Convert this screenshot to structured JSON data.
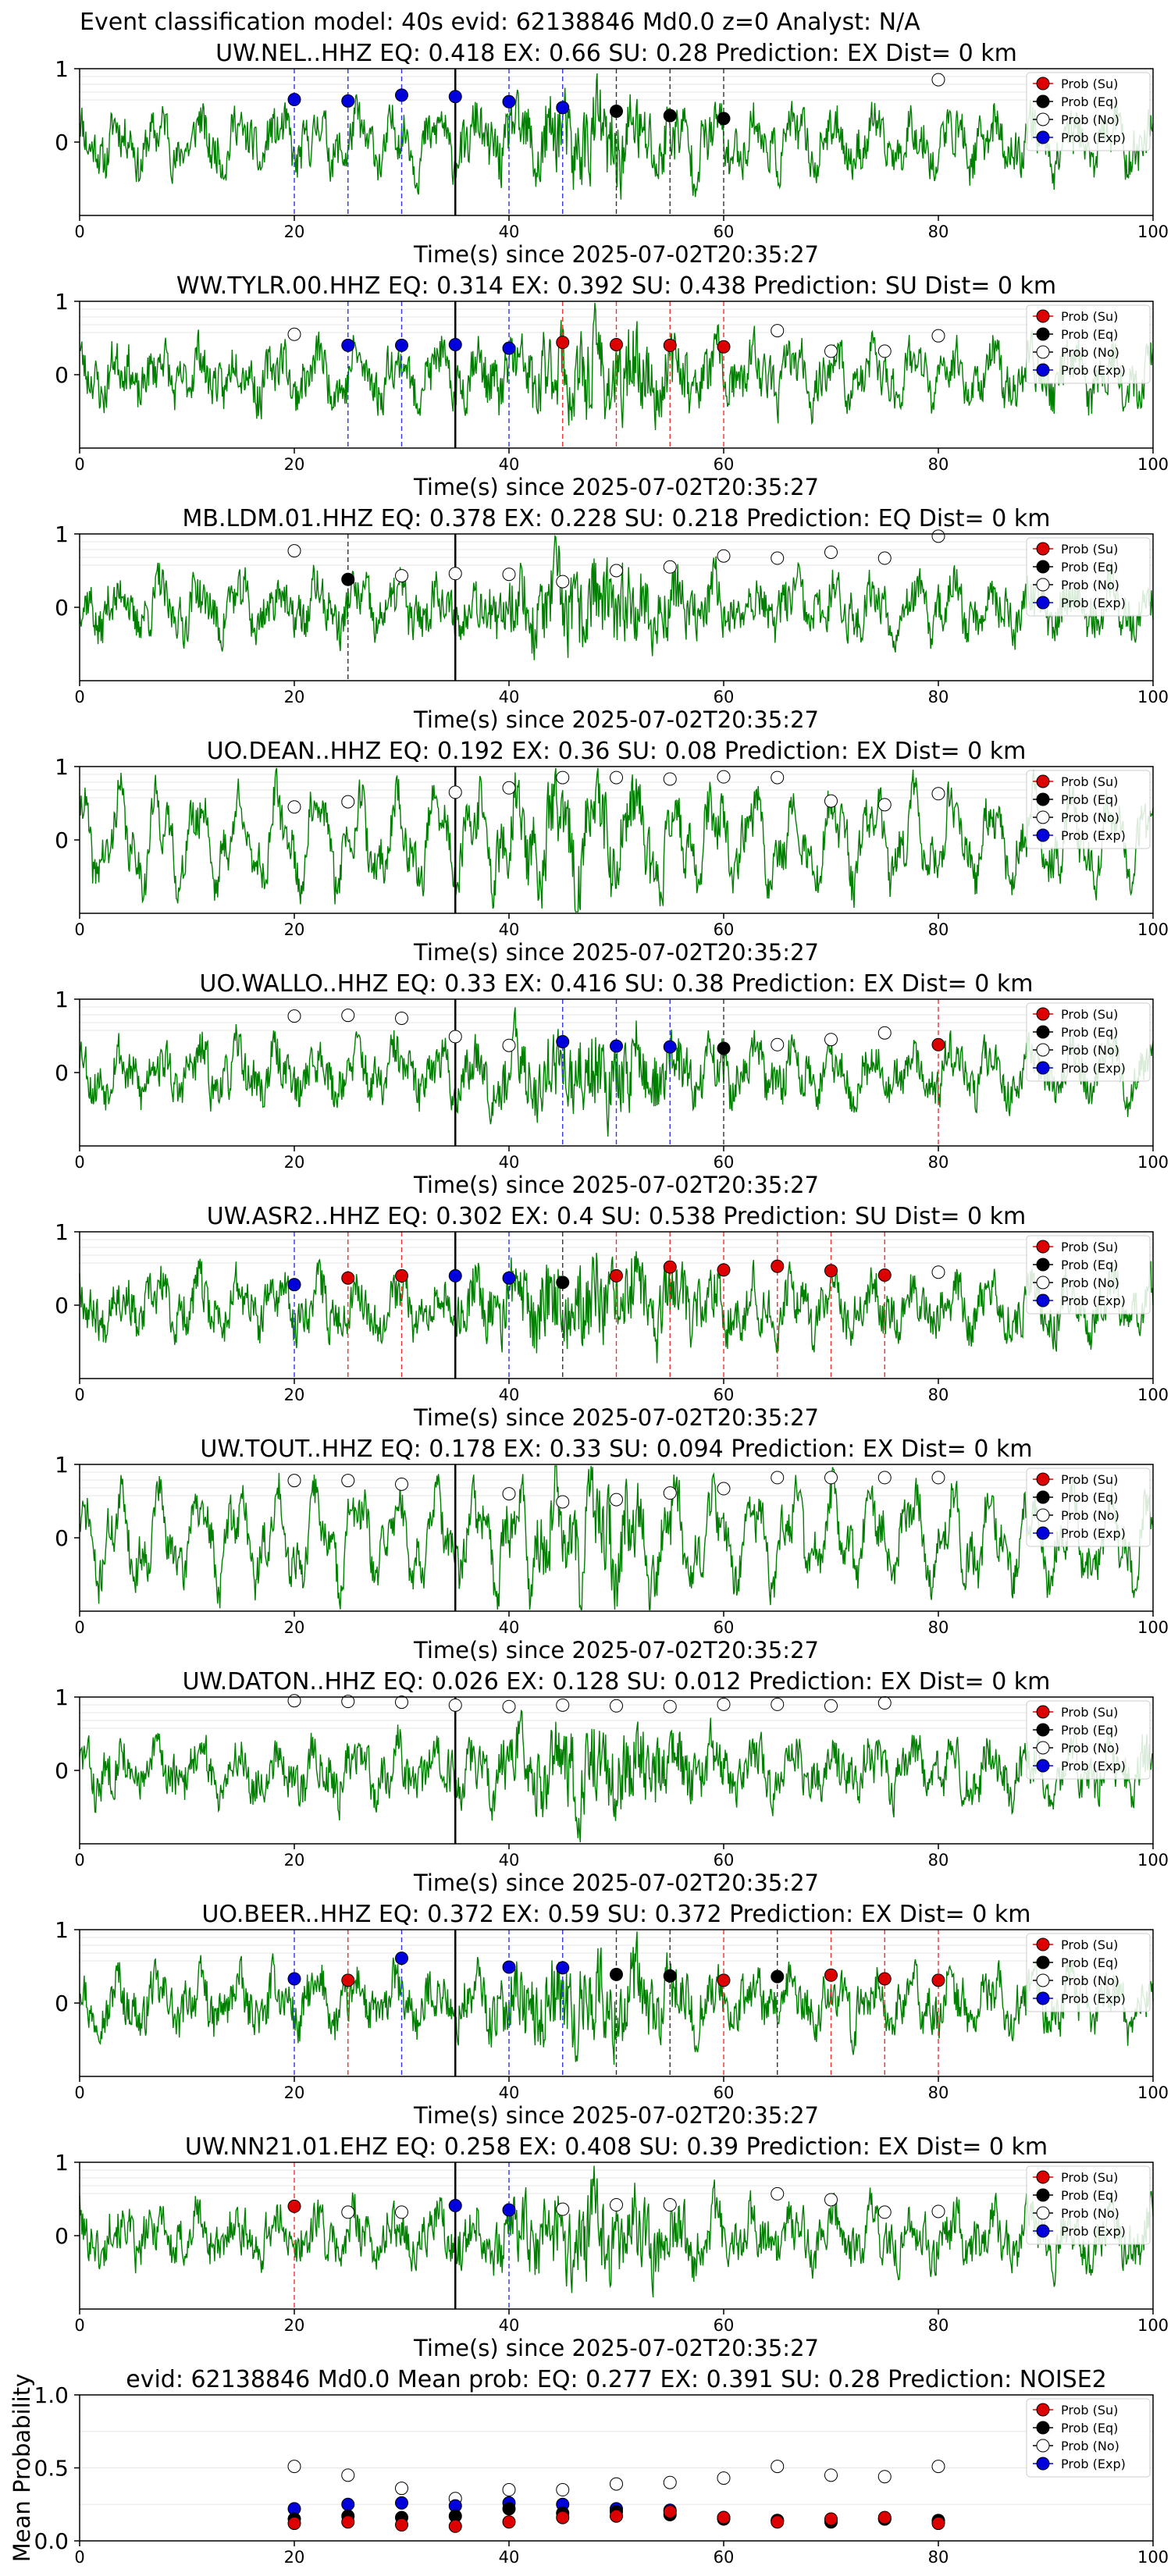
{
  "figure": {
    "suptitle": "Event classification model: 40s evid: 62138846 Md0.0 z=0 Analyst: N/A",
    "xlabel": "Time(s) since 2025-07-02T20:35:27",
    "mean_ylabel": "Mean Probability",
    "legend": [
      "Prob (Su)",
      "Prob (Eq)",
      "Prob (No)",
      "Prob (Exp)"
    ],
    "colors": {
      "su": "#dd0000",
      "eq": "#000000",
      "no": "#ffffff",
      "exp": "#0000dd",
      "waveform": "#008000"
    }
  },
  "chart_data": [
    {
      "type": "line",
      "station": "UW.NEL..HHZ",
      "title": "UW.NEL..HHZ   EQ: 0.418   EX: 0.66   SU: 0.28   Prediction: EX    Dist= 0 km",
      "xlim": [
        0,
        100
      ],
      "ylim": [
        -1,
        1
      ],
      "xticks": [
        0,
        20,
        40,
        60,
        80,
        100
      ],
      "yticks": [
        0,
        1
      ],
      "origin_line": 35,
      "seed": 11,
      "legend_position": "top-right",
      "picks": [
        {
          "t": 20,
          "cls": "exp",
          "p": 0.58
        },
        {
          "t": 25,
          "cls": "exp",
          "p": 0.56
        },
        {
          "t": 30,
          "cls": "exp",
          "p": 0.64
        },
        {
          "t": 35,
          "cls": "exp",
          "p": 0.62
        },
        {
          "t": 40,
          "cls": "exp",
          "p": 0.55
        },
        {
          "t": 45,
          "cls": "exp",
          "p": 0.47
        },
        {
          "t": 50,
          "cls": "eq",
          "p": 0.42
        },
        {
          "t": 55,
          "cls": "eq",
          "p": 0.36
        },
        {
          "t": 60,
          "cls": "eq",
          "p": 0.32
        },
        {
          "t": 80,
          "cls": "no",
          "p": 0.85
        }
      ]
    },
    {
      "type": "line",
      "station": "WW.TYLR.00.HHZ",
      "title": "WW.TYLR.00.HHZ   EQ: 0.314   EX: 0.392   SU: 0.438   Prediction: SU    Dist= 0 km",
      "xlim": [
        0,
        100
      ],
      "ylim": [
        -1,
        1
      ],
      "xticks": [
        0,
        20,
        40,
        60,
        80,
        100
      ],
      "yticks": [
        0,
        1
      ],
      "origin_line": 35,
      "seed": 23,
      "legend_position": "top-right",
      "picks": [
        {
          "t": 20,
          "cls": "no",
          "p": 0.55
        },
        {
          "t": 25,
          "cls": "exp",
          "p": 0.4
        },
        {
          "t": 30,
          "cls": "exp",
          "p": 0.4
        },
        {
          "t": 35,
          "cls": "exp",
          "p": 0.41
        },
        {
          "t": 40,
          "cls": "exp",
          "p": 0.36
        },
        {
          "t": 45,
          "cls": "su",
          "p": 0.44
        },
        {
          "t": 50,
          "cls": "su",
          "p": 0.41
        },
        {
          "t": 55,
          "cls": "su",
          "p": 0.4
        },
        {
          "t": 60,
          "cls": "su",
          "p": 0.38
        },
        {
          "t": 65,
          "cls": "no",
          "p": 0.6
        },
        {
          "t": 70,
          "cls": "no",
          "p": 0.32
        },
        {
          "t": 75,
          "cls": "no",
          "p": 0.32
        },
        {
          "t": 80,
          "cls": "no",
          "p": 0.53
        }
      ]
    },
    {
      "type": "line",
      "station": "MB.LDM.01.HHZ",
      "title": "MB.LDM.01.HHZ   EQ: 0.378   EX: 0.228   SU: 0.218   Prediction: EQ    Dist= 0 km",
      "xlim": [
        0,
        100
      ],
      "ylim": [
        -1,
        1
      ],
      "xticks": [
        0,
        20,
        40,
        60,
        80,
        100
      ],
      "yticks": [
        0,
        1
      ],
      "origin_line": 35,
      "seed": 37,
      "legend_position": "top-right",
      "picks": [
        {
          "t": 20,
          "cls": "no",
          "p": 0.77
        },
        {
          "t": 25,
          "cls": "eq",
          "p": 0.38
        },
        {
          "t": 30,
          "cls": "no",
          "p": 0.43
        },
        {
          "t": 35,
          "cls": "no",
          "p": 0.46
        },
        {
          "t": 40,
          "cls": "no",
          "p": 0.45
        },
        {
          "t": 45,
          "cls": "no",
          "p": 0.35
        },
        {
          "t": 50,
          "cls": "no",
          "p": 0.5
        },
        {
          "t": 55,
          "cls": "no",
          "p": 0.55
        },
        {
          "t": 60,
          "cls": "no",
          "p": 0.7
        },
        {
          "t": 65,
          "cls": "no",
          "p": 0.67
        },
        {
          "t": 70,
          "cls": "no",
          "p": 0.75
        },
        {
          "t": 75,
          "cls": "no",
          "p": 0.67
        },
        {
          "t": 80,
          "cls": "no",
          "p": 0.97
        }
      ]
    },
    {
      "type": "line",
      "station": "UO.DEAN..HHZ",
      "title": "UO.DEAN..HHZ   EQ: 0.192   EX: 0.36   SU: 0.08   Prediction: EX    Dist= 0 km",
      "xlim": [
        0,
        100
      ],
      "ylim": [
        -1,
        1
      ],
      "xticks": [
        0,
        20,
        40,
        60,
        80,
        100
      ],
      "yticks": [
        0,
        1
      ],
      "origin_line": 35,
      "seed": 41,
      "legend_position": "top-right",
      "picks": [
        {
          "t": 20,
          "cls": "no",
          "p": 0.45
        },
        {
          "t": 25,
          "cls": "no",
          "p": 0.52
        },
        {
          "t": 35,
          "cls": "no",
          "p": 0.65
        },
        {
          "t": 40,
          "cls": "no",
          "p": 0.71
        },
        {
          "t": 45,
          "cls": "no",
          "p": 0.85
        },
        {
          "t": 50,
          "cls": "no",
          "p": 0.85
        },
        {
          "t": 55,
          "cls": "no",
          "p": 0.83
        },
        {
          "t": 60,
          "cls": "no",
          "p": 0.86
        },
        {
          "t": 65,
          "cls": "no",
          "p": 0.85
        },
        {
          "t": 70,
          "cls": "no",
          "p": 0.53
        },
        {
          "t": 75,
          "cls": "no",
          "p": 0.48
        },
        {
          "t": 80,
          "cls": "no",
          "p": 0.63
        }
      ]
    },
    {
      "type": "line",
      "station": "UO.WALLO..HHZ",
      "title": "UO.WALLO..HHZ   EQ: 0.33   EX: 0.416   SU: 0.38   Prediction: EX    Dist= 0 km",
      "xlim": [
        0,
        100
      ],
      "ylim": [
        -1,
        1
      ],
      "xticks": [
        0,
        20,
        40,
        60,
        80,
        100
      ],
      "yticks": [
        0,
        1
      ],
      "origin_line": 35,
      "seed": 53,
      "legend_position": "top-right",
      "picks": [
        {
          "t": 20,
          "cls": "no",
          "p": 0.77
        },
        {
          "t": 25,
          "cls": "no",
          "p": 0.78
        },
        {
          "t": 30,
          "cls": "no",
          "p": 0.74
        },
        {
          "t": 35,
          "cls": "no",
          "p": 0.49
        },
        {
          "t": 40,
          "cls": "no",
          "p": 0.37
        },
        {
          "t": 45,
          "cls": "exp",
          "p": 0.42
        },
        {
          "t": 50,
          "cls": "exp",
          "p": 0.36
        },
        {
          "t": 55,
          "cls": "exp",
          "p": 0.35
        },
        {
          "t": 60,
          "cls": "eq",
          "p": 0.33
        },
        {
          "t": 65,
          "cls": "no",
          "p": 0.38
        },
        {
          "t": 70,
          "cls": "no",
          "p": 0.45
        },
        {
          "t": 75,
          "cls": "no",
          "p": 0.54
        },
        {
          "t": 80,
          "cls": "su",
          "p": 0.38
        }
      ]
    },
    {
      "type": "line",
      "station": "UW.ASR2..HHZ",
      "title": "UW.ASR2..HHZ   EQ: 0.302   EX: 0.4   SU: 0.538   Prediction: SU    Dist= 0 km",
      "xlim": [
        0,
        100
      ],
      "ylim": [
        -1,
        1
      ],
      "xticks": [
        0,
        20,
        40,
        60,
        80,
        100
      ],
      "yticks": [
        0,
        1
      ],
      "origin_line": 35,
      "seed": 67,
      "legend_position": "top-right",
      "picks": [
        {
          "t": 20,
          "cls": "exp",
          "p": 0.28
        },
        {
          "t": 25,
          "cls": "su",
          "p": 0.37
        },
        {
          "t": 30,
          "cls": "su",
          "p": 0.4
        },
        {
          "t": 35,
          "cls": "exp",
          "p": 0.4
        },
        {
          "t": 40,
          "cls": "exp",
          "p": 0.37
        },
        {
          "t": 45,
          "cls": "eq",
          "p": 0.31
        },
        {
          "t": 50,
          "cls": "su",
          "p": 0.4
        },
        {
          "t": 55,
          "cls": "su",
          "p": 0.52
        },
        {
          "t": 60,
          "cls": "su",
          "p": 0.48
        },
        {
          "t": 65,
          "cls": "su",
          "p": 0.53
        },
        {
          "t": 70,
          "cls": "su",
          "p": 0.47
        },
        {
          "t": 75,
          "cls": "su",
          "p": 0.41
        },
        {
          "t": 80,
          "cls": "no",
          "p": 0.45
        }
      ]
    },
    {
      "type": "line",
      "station": "UW.TOUT..HHZ",
      "title": "UW.TOUT..HHZ   EQ: 0.178   EX: 0.33   SU: 0.094   Prediction: EX    Dist= 0 km",
      "xlim": [
        0,
        100
      ],
      "ylim": [
        -1,
        1
      ],
      "xticks": [
        0,
        20,
        40,
        60,
        80,
        100
      ],
      "yticks": [
        0,
        1
      ],
      "origin_line": 35,
      "seed": 71,
      "legend_position": "top-right",
      "picks": [
        {
          "t": 20,
          "cls": "no",
          "p": 0.78
        },
        {
          "t": 25,
          "cls": "no",
          "p": 0.78
        },
        {
          "t": 30,
          "cls": "no",
          "p": 0.73
        },
        {
          "t": 40,
          "cls": "no",
          "p": 0.6
        },
        {
          "t": 45,
          "cls": "no",
          "p": 0.49
        },
        {
          "t": 50,
          "cls": "no",
          "p": 0.52
        },
        {
          "t": 55,
          "cls": "no",
          "p": 0.61
        },
        {
          "t": 60,
          "cls": "no",
          "p": 0.67
        },
        {
          "t": 65,
          "cls": "no",
          "p": 0.82
        },
        {
          "t": 70,
          "cls": "no",
          "p": 0.82
        },
        {
          "t": 75,
          "cls": "no",
          "p": 0.82
        },
        {
          "t": 80,
          "cls": "no",
          "p": 0.82
        }
      ]
    },
    {
      "type": "line",
      "station": "UW.DATON..HHZ",
      "title": "UW.DATON..HHZ   EQ: 0.026   EX: 0.128   SU: 0.012   Prediction: EX    Dist= 0 km",
      "xlim": [
        0,
        100
      ],
      "ylim": [
        -1,
        1
      ],
      "xticks": [
        0,
        20,
        40,
        60,
        80,
        100
      ],
      "yticks": [
        0,
        1
      ],
      "origin_line": 35,
      "seed": 83,
      "legend_position": "top-right",
      "picks": [
        {
          "t": 20,
          "cls": "no",
          "p": 0.95
        },
        {
          "t": 25,
          "cls": "no",
          "p": 0.94
        },
        {
          "t": 30,
          "cls": "no",
          "p": 0.93
        },
        {
          "t": 35,
          "cls": "no",
          "p": 0.89
        },
        {
          "t": 40,
          "cls": "no",
          "p": 0.87
        },
        {
          "t": 45,
          "cls": "no",
          "p": 0.89
        },
        {
          "t": 50,
          "cls": "no",
          "p": 0.88
        },
        {
          "t": 55,
          "cls": "no",
          "p": 0.87
        },
        {
          "t": 60,
          "cls": "no",
          "p": 0.9
        },
        {
          "t": 65,
          "cls": "no",
          "p": 0.9
        },
        {
          "t": 70,
          "cls": "no",
          "p": 0.88
        },
        {
          "t": 75,
          "cls": "no",
          "p": 0.92
        }
      ]
    },
    {
      "type": "line",
      "station": "UO.BEER..HHZ",
      "title": "UO.BEER..HHZ   EQ: 0.372   EX: 0.59   SU: 0.372   Prediction: EX    Dist= 0 km",
      "xlim": [
        0,
        100
      ],
      "ylim": [
        -1,
        1
      ],
      "xticks": [
        0,
        20,
        40,
        60,
        80,
        100
      ],
      "yticks": [
        0,
        1
      ],
      "origin_line": 35,
      "seed": 97,
      "legend_position": "top-right",
      "picks": [
        {
          "t": 20,
          "cls": "exp",
          "p": 0.33
        },
        {
          "t": 25,
          "cls": "su",
          "p": 0.31
        },
        {
          "t": 30,
          "cls": "exp",
          "p": 0.61
        },
        {
          "t": 40,
          "cls": "exp",
          "p": 0.49
        },
        {
          "t": 45,
          "cls": "exp",
          "p": 0.48
        },
        {
          "t": 50,
          "cls": "eq",
          "p": 0.39
        },
        {
          "t": 55,
          "cls": "eq",
          "p": 0.37
        },
        {
          "t": 60,
          "cls": "su",
          "p": 0.31
        },
        {
          "t": 65,
          "cls": "eq",
          "p": 0.36
        },
        {
          "t": 70,
          "cls": "su",
          "p": 0.38
        },
        {
          "t": 75,
          "cls": "su",
          "p": 0.33
        },
        {
          "t": 80,
          "cls": "su",
          "p": 0.31
        }
      ]
    },
    {
      "type": "line",
      "station": "UW.NN21.01.EHZ",
      "title": "UW.NN21.01.EHZ   EQ: 0.258   EX: 0.408   SU: 0.39   Prediction: EX    Dist= 0 km",
      "xlim": [
        0,
        100
      ],
      "ylim": [
        -1,
        1
      ],
      "xticks": [
        0,
        20,
        40,
        60,
        80,
        100
      ],
      "yticks": [
        0,
        1
      ],
      "origin_line": 35,
      "seed": 101,
      "legend_position": "top-right",
      "picks": [
        {
          "t": 20,
          "cls": "su",
          "p": 0.4
        },
        {
          "t": 25,
          "cls": "no",
          "p": 0.32
        },
        {
          "t": 30,
          "cls": "no",
          "p": 0.32
        },
        {
          "t": 35,
          "cls": "exp",
          "p": 0.41
        },
        {
          "t": 40,
          "cls": "exp",
          "p": 0.35
        },
        {
          "t": 45,
          "cls": "no",
          "p": 0.36
        },
        {
          "t": 50,
          "cls": "no",
          "p": 0.42
        },
        {
          "t": 55,
          "cls": "no",
          "p": 0.42
        },
        {
          "t": 65,
          "cls": "no",
          "p": 0.57
        },
        {
          "t": 70,
          "cls": "no",
          "p": 0.49
        },
        {
          "t": 75,
          "cls": "no",
          "p": 0.32
        },
        {
          "t": 80,
          "cls": "no",
          "p": 0.33
        }
      ]
    },
    {
      "type": "scatter",
      "station": "mean",
      "title": "evid: 62138846  Md0.0   Mean prob:   EQ: 0.277  EX: 0.391  SU: 0.28   Prediction: NOISE2",
      "xlim": [
        0,
        100
      ],
      "ylim": [
        0,
        1
      ],
      "xticks": [
        0,
        20,
        40,
        60,
        80,
        100
      ],
      "yticks": [
        0.0,
        0.5,
        1.0
      ],
      "ylabel": "Mean Probability",
      "legend_position": "top-right",
      "x": [
        20,
        25,
        30,
        35,
        40,
        45,
        50,
        55,
        60,
        65,
        70,
        75,
        80
      ],
      "series": [
        {
          "name": "Prob (No)",
          "cls": "no",
          "values": [
            0.51,
            0.45,
            0.36,
            0.29,
            0.35,
            0.35,
            0.39,
            0.4,
            0.43,
            0.51,
            0.45,
            0.44,
            0.51
          ]
        },
        {
          "name": "Prob (Exp)",
          "cls": "exp",
          "values": [
            0.22,
            0.25,
            0.26,
            0.24,
            0.26,
            0.25,
            0.22,
            0.21,
            0.16,
            0.14,
            0.14,
            0.15,
            0.13
          ]
        },
        {
          "name": "Prob (Eq)",
          "cls": "eq",
          "values": [
            0.15,
            0.17,
            0.16,
            0.17,
            0.22,
            0.19,
            0.2,
            0.18,
            0.15,
            0.14,
            0.13,
            0.15,
            0.14
          ]
        },
        {
          "name": "Prob (Su)",
          "cls": "su",
          "values": [
            0.12,
            0.13,
            0.11,
            0.1,
            0.13,
            0.16,
            0.17,
            0.2,
            0.16,
            0.13,
            0.15,
            0.16,
            0.12
          ]
        }
      ]
    }
  ]
}
